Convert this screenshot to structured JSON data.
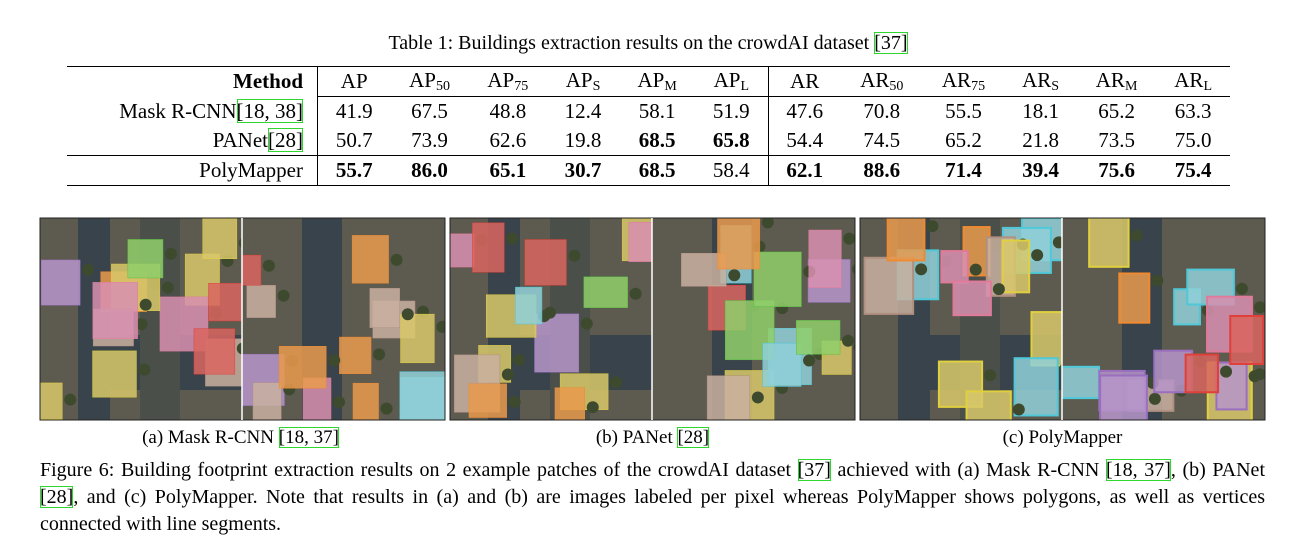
{
  "table": {
    "title_main": "Table 1: Buildings extraction results on the crowdAI dataset ",
    "title_cite": "[37]",
    "header": [
      {
        "main": "Method"
      },
      {
        "main": "AP"
      },
      {
        "main": "AP",
        "sub": "50"
      },
      {
        "main": "AP",
        "sub": "75"
      },
      {
        "main": "AP",
        "sub": "S"
      },
      {
        "main": "AP",
        "sub": "M"
      },
      {
        "main": "AP",
        "sub": "L"
      },
      {
        "main": "AR"
      },
      {
        "main": "AR",
        "sub": "50"
      },
      {
        "main": "AR",
        "sub": "75"
      },
      {
        "main": "AR",
        "sub": "S"
      },
      {
        "main": "AR",
        "sub": "M"
      },
      {
        "main": "AR",
        "sub": "L"
      }
    ],
    "rows": [
      {
        "method": "Mask R-CNN",
        "cite": "[18, 38]",
        "cells": [
          "41.9",
          "67.5",
          "48.8",
          "12.4",
          "58.1",
          "51.9",
          "47.6",
          "70.8",
          "55.5",
          "18.1",
          "65.2",
          "63.3"
        ],
        "bold": [
          false,
          false,
          false,
          false,
          false,
          false,
          false,
          false,
          false,
          false,
          false,
          false
        ]
      },
      {
        "method": "PANet",
        "cite": "[28]",
        "cells": [
          "50.7",
          "73.9",
          "62.6",
          "19.8",
          "68.5",
          "65.8",
          "54.4",
          "74.5",
          "65.2",
          "21.8",
          "73.5",
          "75.0"
        ],
        "bold": [
          false,
          false,
          false,
          false,
          true,
          true,
          false,
          false,
          false,
          false,
          false,
          false
        ]
      },
      {
        "method": "PolyMapper",
        "cells": [
          "55.7",
          "86.0",
          "65.1",
          "30.7",
          "68.5",
          "58.4",
          "62.1",
          "88.6",
          "71.4",
          "39.4",
          "75.6",
          "75.4"
        ],
        "bold": [
          true,
          true,
          true,
          true,
          true,
          false,
          true,
          true,
          true,
          true,
          true,
          true
        ]
      }
    ]
  },
  "figure": {
    "subcaptions": [
      {
        "label": "(a) Mask R-CNN ",
        "cite": "[18, 37]"
      },
      {
        "label": "(b) PANet ",
        "cite": "[28]"
      },
      {
        "label": "(c) PolyMapper"
      }
    ],
    "caption": [
      "Figure 6: Building footprint extraction results on 2 example patches of the crowdAI dataset ",
      "[37]",
      " achieved with (a) Mask R-CNN ",
      "[18, 37]",
      ", (b) PANet ",
      "[28]",
      ", and (c) PolyMapper. Note that results in (a) and (b) are images labeled per pixel whereas PolyMapper shows polygons, as well as vertices connected with line segments."
    ]
  }
}
